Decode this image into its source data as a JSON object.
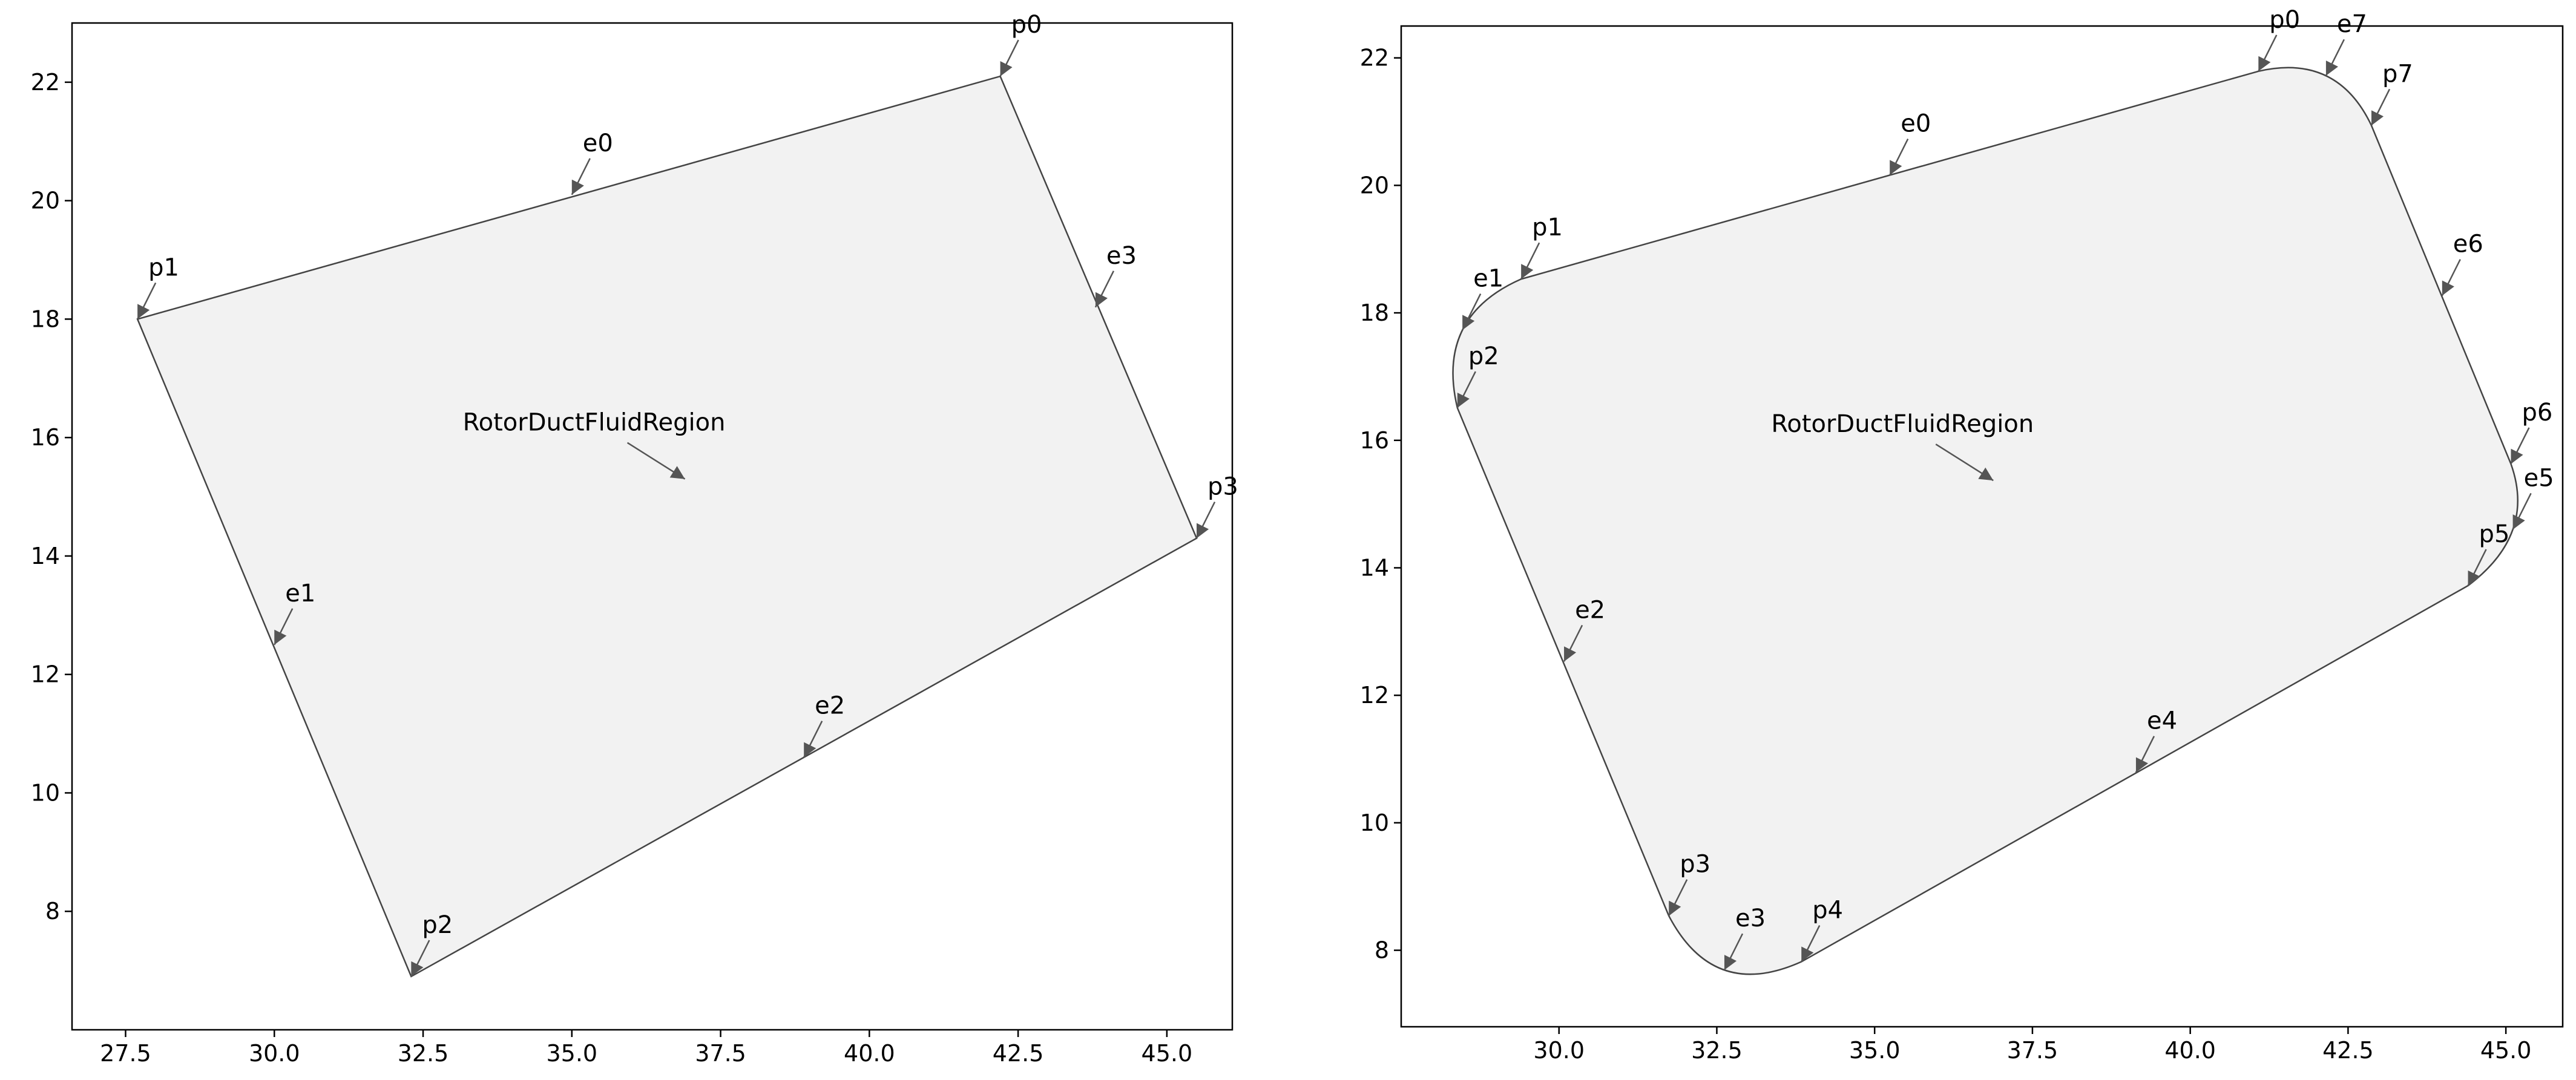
{
  "chart_data": [
    {
      "type": "region",
      "xlim": [
        26.6,
        46.1
      ],
      "ylim": [
        6.0,
        23.0
      ],
      "xticks": [
        27.5,
        {
          "value": 30,
          "label": "30.0"
        },
        32.5,
        {
          "value": 35,
          "label": "35.0"
        },
        37.5,
        {
          "value": 40,
          "label": "40.0"
        },
        42.5,
        {
          "value": 45,
          "label": "45.0"
        }
      ],
      "yticks": [
        8,
        10,
        12,
        14,
        16,
        18,
        20,
        22
      ],
      "fill": "#f2f2f2",
      "stroke": "#444444",
      "region": {
        "label": "RotorDuctFluidRegion",
        "x": 36.9,
        "y": 15.3
      },
      "points": [
        {
          "label": "p0",
          "x": 42.2,
          "y": 22.1
        },
        {
          "label": "p1",
          "x": 27.7,
          "y": 18.0
        },
        {
          "label": "p2",
          "x": 32.3,
          "y": 6.9
        },
        {
          "label": "p3",
          "x": 45.5,
          "y": 14.3
        }
      ],
      "edges": [
        {
          "label": "e0",
          "x": 35.0,
          "y": 20.1,
          "kind": "line"
        },
        {
          "label": "e1",
          "x": 30.0,
          "y": 12.5,
          "kind": "line"
        },
        {
          "label": "e2",
          "x": 38.9,
          "y": 10.6,
          "kind": "line"
        },
        {
          "label": "e3",
          "x": 43.8,
          "y": 18.2,
          "kind": "line"
        }
      ]
    },
    {
      "type": "region",
      "xlim": [
        27.5,
        45.9
      ],
      "ylim": [
        6.8,
        22.5
      ],
      "xticks": [
        {
          "value": 30,
          "label": "30.0"
        },
        32.5,
        {
          "value": 35,
          "label": "35.0"
        },
        37.5,
        {
          "value": 40,
          "label": "40.0"
        },
        42.5,
        {
          "value": 45,
          "label": "45.0"
        }
      ],
      "yticks": [
        8,
        10,
        12,
        14,
        16,
        18,
        20,
        22
      ],
      "fill": "#f2f2f2",
      "stroke": "#444444",
      "region": {
        "label": "RotorDuctFluidRegion",
        "x": 36.88,
        "y": 15.37
      },
      "points": [
        {
          "label": "p0",
          "x": 41.08,
          "y": 21.79
        },
        {
          "label": "p1",
          "x": 29.4,
          "y": 18.53
        },
        {
          "label": "p2",
          "x": 28.39,
          "y": 16.51
        },
        {
          "label": "p3",
          "x": 31.74,
          "y": 8.54
        },
        {
          "label": "p4",
          "x": 33.84,
          "y": 7.82
        },
        {
          "label": "p5",
          "x": 44.4,
          "y": 13.72
        },
        {
          "label": "p6",
          "x": 45.08,
          "y": 15.63
        },
        {
          "label": "p7",
          "x": 42.87,
          "y": 20.94
        }
      ],
      "edges": [
        {
          "label": "e0",
          "x": 35.24,
          "y": 20.16,
          "kind": "line"
        },
        {
          "label": "e1",
          "x": 28.47,
          "y": 17.73,
          "kind": "arc"
        },
        {
          "label": "e2",
          "x": 30.08,
          "y": 12.53,
          "kind": "line"
        },
        {
          "label": "e3",
          "x": 32.62,
          "y": 7.69,
          "kind": "arc"
        },
        {
          "label": "e4",
          "x": 39.14,
          "y": 10.79,
          "kind": "line"
        },
        {
          "label": "e5",
          "x": 45.11,
          "y": 14.6,
          "kind": "arc"
        },
        {
          "label": "e6",
          "x": 43.99,
          "y": 18.27,
          "kind": "line"
        },
        {
          "label": "e7",
          "x": 42.15,
          "y": 21.72,
          "kind": "arc"
        }
      ]
    }
  ]
}
